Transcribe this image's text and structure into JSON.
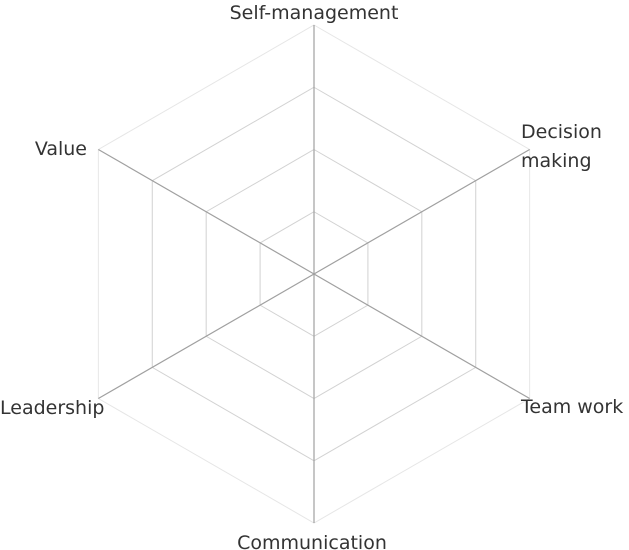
{
  "chart_data": {
    "type": "radar",
    "title": "",
    "axes": [
      {
        "id": "self-management",
        "lines": [
          "Self-management"
        ]
      },
      {
        "id": "decision-making",
        "lines": [
          "Decision",
          "making"
        ]
      },
      {
        "id": "team-work",
        "lines": [
          "Team work"
        ]
      },
      {
        "id": "communication",
        "lines": [
          "Communication"
        ]
      },
      {
        "id": "leadership",
        "lines": [
          "Leadership"
        ]
      },
      {
        "id": "value",
        "lines": [
          "Value"
        ]
      }
    ],
    "grid_levels": 4,
    "series": [],
    "grid": true,
    "colors": {
      "axis_line": "#a0a0a0",
      "grid_inner": "#d2d2d2",
      "grid_outer": "#e6e6e6",
      "label": "#333333"
    }
  }
}
